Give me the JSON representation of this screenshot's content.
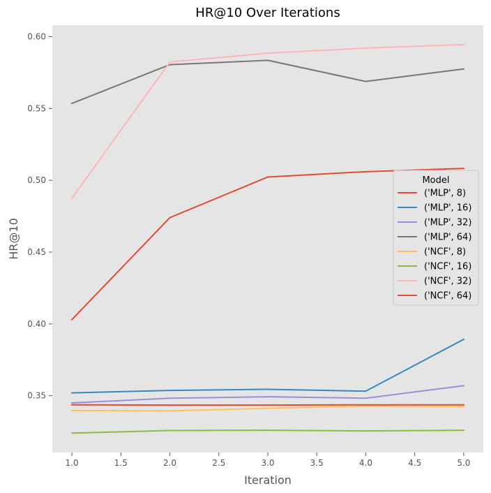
{
  "chart_data": {
    "type": "line",
    "title": "HR@10 Over Iterations",
    "xlabel": "Iteration",
    "ylabel": "HR@10",
    "x": [
      1.0,
      2.0,
      3.0,
      4.0,
      5.0
    ],
    "xlim": [
      0.8,
      5.2
    ],
    "ylim": [
      0.3105,
      0.608
    ],
    "xticks": [
      1.0,
      1.5,
      2.0,
      2.5,
      3.0,
      3.5,
      4.0,
      4.5,
      5.0
    ],
    "xtick_labels": [
      "1.0",
      "1.5",
      "2.0",
      "2.5",
      "3.0",
      "3.5",
      "4.0",
      "4.5",
      "5.0"
    ],
    "yticks": [
      0.35,
      0.4,
      0.45,
      0.5,
      0.55,
      0.6
    ],
    "ytick_labels": [
      "0.35",
      "0.40",
      "0.45",
      "0.50",
      "0.55",
      "0.60"
    ],
    "grid": false,
    "legend": {
      "title": "Model",
      "position": "right"
    },
    "series": [
      {
        "name": "('MLP', 8)",
        "color": "#E24A33",
        "values": [
          0.403,
          0.474,
          0.5023,
          0.506,
          0.5083
        ]
      },
      {
        "name": "('MLP', 16)",
        "color": "#348ABD",
        "values": [
          0.352,
          0.3537,
          0.3545,
          0.3532,
          0.3893
        ]
      },
      {
        "name": "('MLP', 32)",
        "color": "#988ED5",
        "values": [
          0.345,
          0.3483,
          0.3493,
          0.3483,
          0.357
        ]
      },
      {
        "name": "('MLP', 64)",
        "color": "#777777",
        "values": [
          0.5535,
          0.5805,
          0.5835,
          0.5688,
          0.5775
        ]
      },
      {
        "name": "('NCF', 8)",
        "color": "#FBC15E",
        "values": [
          0.3397,
          0.3395,
          0.3413,
          0.3428,
          0.3425
        ]
      },
      {
        "name": "('NCF', 16)",
        "color": "#8EBA42",
        "values": [
          0.324,
          0.3258,
          0.326,
          0.3255,
          0.326
        ]
      },
      {
        "name": "('NCF', 32)",
        "color": "#FFB5B8",
        "values": [
          0.4875,
          0.5823,
          0.5885,
          0.592,
          0.5945
        ]
      },
      {
        "name": "('NCF', 64)",
        "color": "#E24A33",
        "values": [
          0.3437,
          0.3435,
          0.3435,
          0.3437,
          0.3437
        ]
      }
    ]
  }
}
